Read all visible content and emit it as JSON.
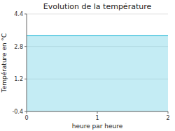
{
  "chart_data": {
    "type": "area",
    "title": "Evolution de la température",
    "x_label": "heure par heure",
    "y_label": "Température en °C",
    "x": [
      0,
      2
    ],
    "values": [
      3.35,
      3.35
    ],
    "color": "#55c8e0",
    "xlim": [
      0,
      2
    ],
    "xticks": [
      0,
      1,
      2
    ],
    "ylim": [
      -0.4,
      4.4
    ],
    "yticks": [
      -0.4,
      1.2,
      2.8,
      4.4
    ],
    "grid": true
  }
}
